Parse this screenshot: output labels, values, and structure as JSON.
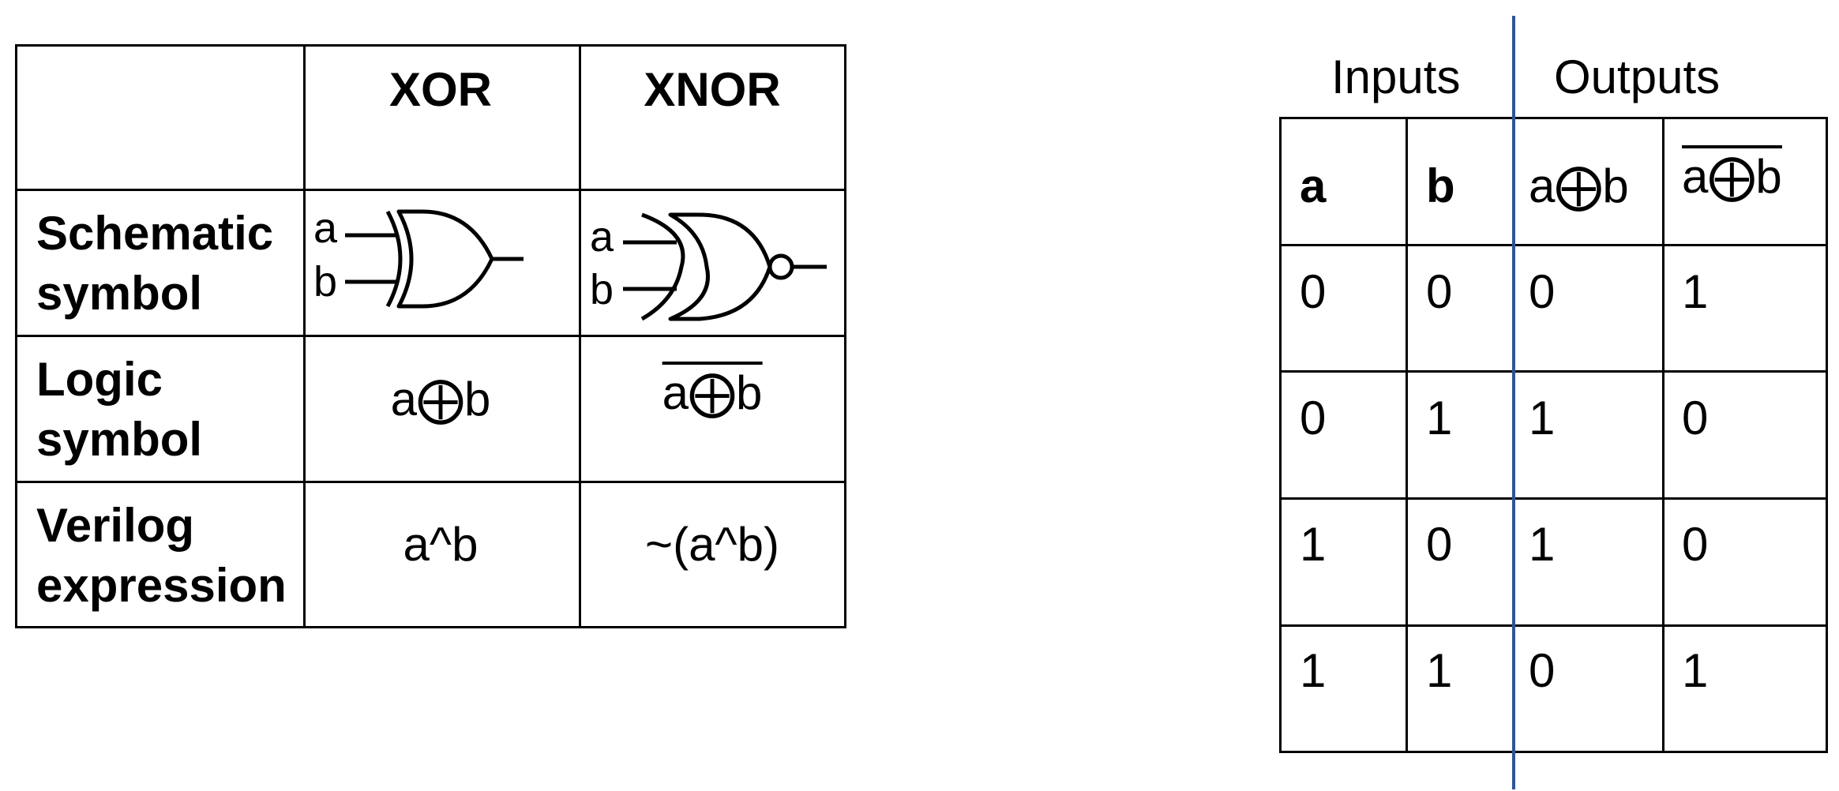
{
  "gate_table": {
    "headers": [
      "",
      "XOR",
      "XNOR"
    ],
    "rows": [
      {
        "label_line1": "Schematic",
        "label_line2": "symbol",
        "xor_pins": [
          "a",
          "b"
        ],
        "xnor_pins": [
          "a",
          "b"
        ]
      },
      {
        "label_line1": "Logic",
        "label_line2": "symbol",
        "xor": "a⨁b",
        "xnor": "a⨁b"
      },
      {
        "label_line1": "Verilog",
        "label_line2": "expression",
        "xor": "a^b",
        "xnor": "~(a^b)"
      }
    ]
  },
  "truth_table": {
    "group_inputs": "Inputs",
    "group_outputs": "Outputs",
    "headers": [
      "a",
      "b",
      "a⨁b",
      "a⨁b"
    ],
    "rows": [
      [
        "0",
        "0",
        "0",
        "1"
      ],
      [
        "0",
        "1",
        "1",
        "0"
      ],
      [
        "1",
        "0",
        "1",
        "0"
      ],
      [
        "1",
        "1",
        "0",
        "1"
      ]
    ],
    "divider_color": "#2f5597"
  }
}
